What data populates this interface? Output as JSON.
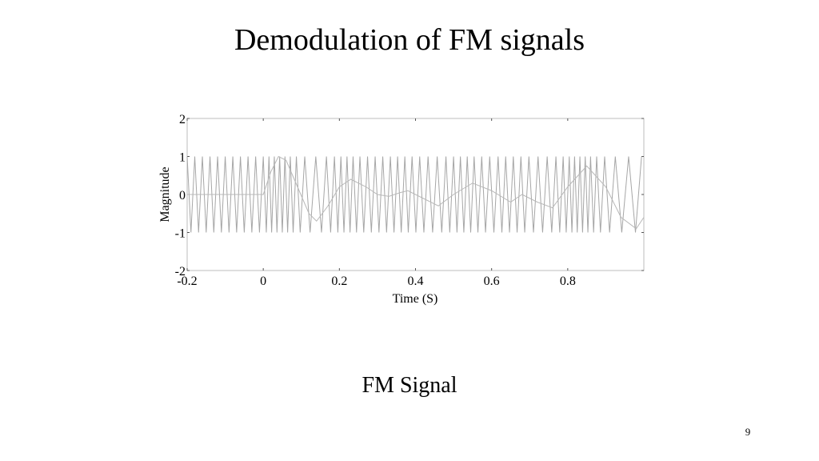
{
  "slide": {
    "title": "Demodulation of FM signals",
    "caption": "FM Signal",
    "page_number": "9"
  },
  "chart_data": {
    "type": "line",
    "x_label": "Time (S)",
    "y_label": "Magnitude",
    "xlim": [
      -0.2,
      1.0
    ],
    "ylim": [
      -2,
      2
    ],
    "xticks": [
      -0.2,
      0,
      0.2,
      0.4,
      0.6,
      0.8
    ],
    "yticks": [
      -2,
      -1,
      0,
      1,
      2
    ],
    "grid": false,
    "series": [
      {
        "color": "#a6a6a6",
        "x": [
          -0.2,
          -0.19,
          -0.18,
          -0.17,
          -0.16,
          -0.15,
          -0.14,
          -0.13,
          -0.12,
          -0.11,
          -0.1,
          -0.09,
          -0.08,
          -0.07,
          -0.06,
          -0.05,
          -0.04,
          -0.03,
          -0.02,
          -0.01,
          0,
          0.008,
          0.015,
          0.022,
          0.029,
          0.036,
          0.043,
          0.05,
          0.057,
          0.064,
          0.071,
          0.0785,
          0.087,
          0.097,
          0.109,
          0.123,
          0.138,
          0.153,
          0.166,
          0.177,
          0.187,
          0.196,
          0.204,
          0.212,
          0.22,
          0.228,
          0.236,
          0.245,
          0.254,
          0.264,
          0.274,
          0.284,
          0.294,
          0.304,
          0.314,
          0.324,
          0.334,
          0.3435,
          0.353,
          0.3625,
          0.372,
          0.381,
          0.391,
          0.401,
          0.411,
          0.422,
          0.433,
          0.445,
          0.457,
          0.469,
          0.48,
          0.49,
          0.5,
          0.509,
          0.518,
          0.527,
          0.536,
          0.545,
          0.554,
          0.564,
          0.574,
          0.584,
          0.595,
          0.606,
          0.617,
          0.627,
          0.637,
          0.647,
          0.657,
          0.667,
          0.677,
          0.687,
          0.698,
          0.71,
          0.722,
          0.734,
          0.746,
          0.758,
          0.769,
          0.779,
          0.788,
          0.796,
          0.804,
          0.811,
          0.818,
          0.825,
          0.832,
          0.839,
          0.846,
          0.853,
          0.86,
          0.868,
          0.876,
          0.886,
          0.897,
          0.91,
          0.925,
          0.942,
          0.96,
          0.978,
          0.994
        ],
        "values": [
          1,
          -1,
          1,
          -1,
          1,
          -1,
          1,
          -1,
          1,
          -1,
          1,
          -1,
          1,
          -1,
          1,
          -1,
          1,
          -1,
          1,
          -1,
          1,
          -1,
          1,
          -1,
          1,
          -1,
          1,
          -1,
          1,
          -1,
          1,
          -1,
          1,
          -1,
          1,
          -1,
          1,
          -1,
          1,
          -1,
          1,
          -1,
          1,
          -1,
          1,
          -1,
          1,
          -1,
          1,
          -1,
          1,
          -1,
          1,
          -1,
          1,
          -1,
          1,
          -1,
          1,
          -1,
          1,
          -1,
          1,
          -1,
          1,
          -1,
          1,
          -1,
          1,
          -1,
          1,
          -1,
          1,
          -1,
          1,
          -1,
          1,
          -1,
          1,
          -1,
          1,
          -1,
          1,
          -1,
          1,
          -1,
          1,
          -1,
          1,
          -1,
          1,
          -1,
          1,
          -1,
          1,
          -1,
          1,
          -1,
          1,
          -1,
          1,
          -1,
          1,
          -1,
          1,
          -1,
          1,
          -1,
          1,
          -1,
          1,
          -1,
          1,
          -1,
          1,
          -1,
          1,
          -1,
          1,
          -1,
          1
        ]
      },
      {
        "color": "#b8b8b8",
        "x": [
          -0.2,
          0,
          0.02,
          0.04,
          0.06,
          0.09,
          0.12,
          0.14,
          0.17,
          0.2,
          0.23,
          0.27,
          0.3,
          0.33,
          0.36,
          0.38,
          0.42,
          0.46,
          0.5,
          0.55,
          0.6,
          0.65,
          0.68,
          0.72,
          0.76,
          0.8,
          0.85,
          0.9,
          0.94,
          0.98,
          1.0
        ],
        "values": [
          0,
          0,
          0.6,
          1,
          0.9,
          0.2,
          -0.5,
          -0.7,
          -0.3,
          0.2,
          0.4,
          0.2,
          0,
          -0.05,
          0.05,
          0.1,
          -0.1,
          -0.3,
          0,
          0.3,
          0.1,
          -0.2,
          0,
          -0.2,
          -0.35,
          0.2,
          0.75,
          0.2,
          -0.6,
          -0.9,
          -0.6
        ]
      }
    ]
  }
}
